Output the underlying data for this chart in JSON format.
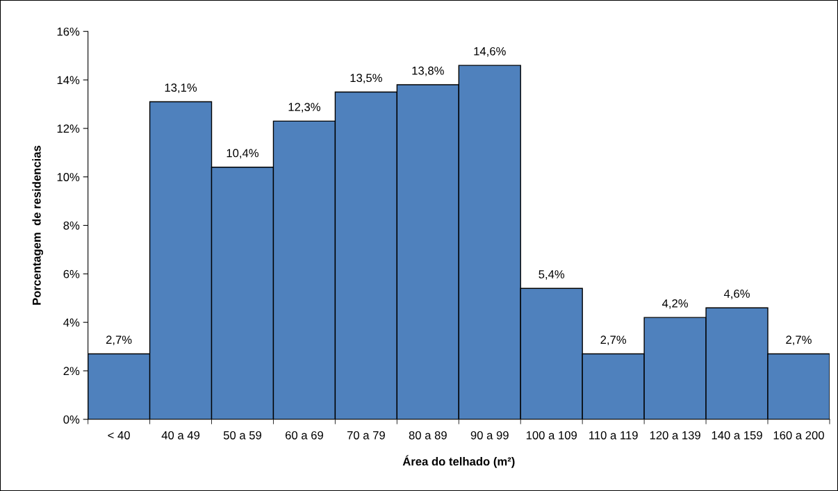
{
  "chart_data": {
    "type": "bar",
    "xlabel": "Área do telhado (m²)",
    "ylabel": "Porcentagem  de residencias",
    "categories": [
      "< 40",
      "40 a 49",
      "50 a 59",
      "60 a 69",
      "70 a 79",
      "80 a 89",
      "90 a 99",
      "100 a 109",
      "110 a 119",
      "120 a 139",
      "140 a 159",
      "160 a 200"
    ],
    "values": [
      2.7,
      13.1,
      10.4,
      12.3,
      13.5,
      13.8,
      14.6,
      5.4,
      2.7,
      4.2,
      4.6,
      2.7
    ],
    "value_labels": [
      "2,7%",
      "13,1%",
      "10,4%",
      "12,3%",
      "13,5%",
      "13,8%",
      "14,6%",
      "5,4%",
      "2,7%",
      "4,2%",
      "4,6%",
      "2,7%"
    ],
    "color": "#4f81bd",
    "ylim": [
      0,
      16
    ],
    "yticks": [
      {
        "value": 0,
        "label": "0%"
      },
      {
        "value": 2,
        "label": "2%"
      },
      {
        "value": 4,
        "label": "4%"
      },
      {
        "value": 6,
        "label": "6%"
      },
      {
        "value": 8,
        "label": "8%"
      },
      {
        "value": 10,
        "label": "10%"
      },
      {
        "value": 12,
        "label": "12%"
      },
      {
        "value": 14,
        "label": "14%"
      },
      {
        "value": 16,
        "label": "16%"
      }
    ],
    "grid": false,
    "legend": false
  }
}
